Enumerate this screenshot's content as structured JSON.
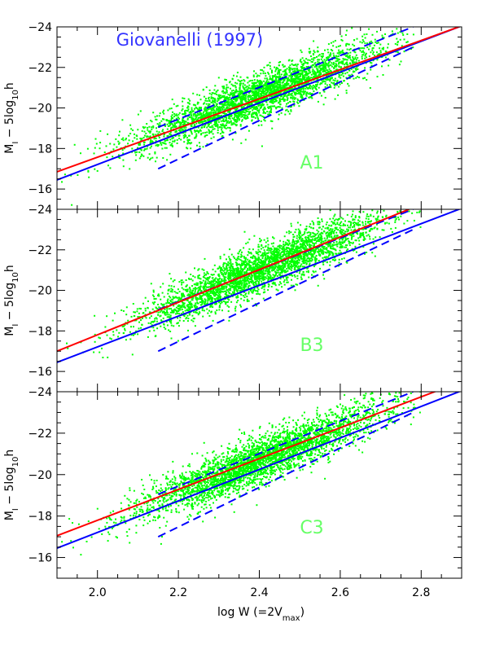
{
  "figure": {
    "xlabel_main": "log W (=2V",
    "xlabel_sub": "max",
    "xlabel_close": ")",
    "ylabel_main": "M",
    "ylabel_sub1": "I",
    "ylabel_mid": " − 5log",
    "ylabel_sub2": "10",
    "ylabel_end": "h"
  },
  "colors": {
    "scatter": "#00ff00",
    "red_fit": "#ff0000",
    "blue_fit": "#0000ff",
    "panel_label": "#66ff66",
    "annotation": "#3333ff",
    "axes": "#000000"
  },
  "chart_data": [
    {
      "type": "scatter",
      "panel_label": "A1",
      "annotation": "Giovanelli (1997)",
      "xlim": [
        1.9,
        2.9
      ],
      "ylim": [
        -15,
        -24
      ],
      "xticks": [
        2.0,
        2.2,
        2.4,
        2.6,
        2.8
      ],
      "xtick_labels": [
        "",
        "",
        "",
        "",
        ""
      ],
      "yticks": [
        -16,
        -18,
        -20,
        -22,
        -24
      ],
      "ytick_labels": [
        "−16",
        "−18",
        "−20",
        "−22",
        "−24"
      ],
      "scatter_trend": {
        "x_center": 2.4,
        "y_center": -20.6,
        "slope": -7.6,
        "scatter": 0.55,
        "x_sigma": 0.15,
        "seed": 11
      },
      "red_line": {
        "x": [
          1.9,
          2.9
        ],
        "y": [
          -16.85,
          -24.05
        ]
      },
      "blue_line": {
        "x": [
          1.9,
          2.9
        ],
        "y": [
          -16.45,
          -24.05
        ]
      },
      "blue_dashed_upper": {
        "x": [
          2.15,
          2.78
        ],
        "y": [
          -19.05,
          -24.0
        ]
      },
      "blue_dashed_lower": {
        "x": [
          2.15,
          2.78
        ],
        "y": [
          -17.0,
          -23.0
        ]
      }
    },
    {
      "type": "scatter",
      "panel_label": "B3",
      "annotation": "",
      "xlim": [
        1.9,
        2.9
      ],
      "ylim": [
        -15,
        -24
      ],
      "xticks": [
        2.0,
        2.2,
        2.4,
        2.6,
        2.8
      ],
      "xtick_labels": [
        "",
        "",
        "",
        "",
        ""
      ],
      "yticks": [
        -16,
        -18,
        -20,
        -22,
        -24
      ],
      "ytick_labels": [
        "−16",
        "−18",
        "−20",
        "−22",
        "−24"
      ],
      "scatter_trend": {
        "x_center": 2.4,
        "y_center": -21.0,
        "slope": -8.2,
        "scatter": 0.55,
        "x_sigma": 0.15,
        "seed": 23
      },
      "red_line": {
        "x": [
          1.9,
          2.77
        ],
        "y": [
          -17.0,
          -24.0
        ]
      },
      "blue_line": {
        "x": [
          1.9,
          2.9
        ],
        "y": [
          -16.45,
          -24.05
        ]
      },
      "blue_dashed_upper": {
        "x": [
          2.15,
          2.78
        ],
        "y": [
          -19.05,
          -24.0
        ]
      },
      "blue_dashed_lower": {
        "x": [
          2.15,
          2.78
        ],
        "y": [
          -17.0,
          -23.0
        ]
      }
    },
    {
      "type": "scatter",
      "panel_label": "C3",
      "annotation": "",
      "xlim": [
        1.9,
        2.9
      ],
      "ylim": [
        -15,
        -24
      ],
      "xticks": [
        2.0,
        2.2,
        2.4,
        2.6,
        2.8
      ],
      "xtick_labels": [
        "2.0",
        "2.2",
        "2.4",
        "2.6",
        "2.8"
      ],
      "yticks": [
        -16,
        -18,
        -20,
        -22,
        -24
      ],
      "ytick_labels": [
        "−16",
        "−18",
        "−20",
        "−22",
        "−24"
      ],
      "scatter_trend": {
        "x_center": 2.4,
        "y_center": -20.7,
        "slope": -7.9,
        "scatter": 0.55,
        "x_sigma": 0.15,
        "seed": 37
      },
      "red_line": {
        "x": [
          1.9,
          2.84
        ],
        "y": [
          -17.05,
          -24.05
        ]
      },
      "blue_line": {
        "x": [
          1.9,
          2.9
        ],
        "y": [
          -16.45,
          -24.05
        ]
      },
      "blue_dashed_upper": {
        "x": [
          2.15,
          2.78
        ],
        "y": [
          -19.05,
          -24.0
        ]
      },
      "blue_dashed_lower": {
        "x": [
          2.15,
          2.78
        ],
        "y": [
          -17.0,
          -23.0
        ]
      }
    }
  ]
}
